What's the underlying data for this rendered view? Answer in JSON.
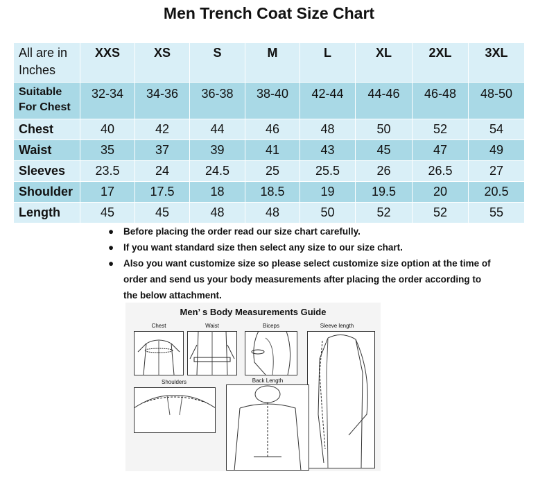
{
  "title": "Men Trench Coat Size Chart",
  "table": {
    "header": [
      "All are in Inches",
      "XXS",
      "XS",
      "S",
      "M",
      "L",
      "XL",
      "2XL",
      "3XL"
    ],
    "rows": [
      {
        "label": "Suitable For Chest",
        "values": [
          "32-34",
          "34-36",
          "36-38",
          "38-40",
          "42-44",
          "44-46",
          "46-48",
          "48-50"
        ]
      },
      {
        "label": "Chest",
        "values": [
          "40",
          "42",
          "44",
          "46",
          "48",
          "50",
          "52",
          "54"
        ]
      },
      {
        "label": "Waist",
        "values": [
          "35",
          "37",
          "39",
          "41",
          "43",
          "45",
          "47",
          "49"
        ]
      },
      {
        "label": "Sleeves",
        "values": [
          "23.5",
          "24",
          "24.5",
          "25",
          "25.5",
          "26",
          "26.5",
          "27"
        ]
      },
      {
        "label": "Shoulder",
        "values": [
          "17",
          "17.5",
          "18",
          "18.5",
          "19",
          "19.5",
          "20",
          "20.5"
        ]
      },
      {
        "label": "Length",
        "values": [
          "45",
          "45",
          "48",
          "48",
          "50",
          "52",
          "52",
          "55"
        ]
      }
    ]
  },
  "notes": [
    "Before placing the order read our size chart carefully.",
    "If you want standard size then select any size to our size chart.",
    "Also you want customize size so please select customize size option at the time of order and send us your body measurements after placing the order according to the below attachment."
  ],
  "guide": {
    "title": "Men’ s Body Measurements Guide",
    "captions": {
      "chest": "Chest",
      "waist": "Waist",
      "biceps": "Biceps",
      "sleeve": "Sleeve length",
      "shoulders": "Shoulders",
      "back": "Back Length"
    }
  },
  "colors": {
    "row_light": "#d9eff7",
    "row_dark": "#a9d9e6"
  }
}
